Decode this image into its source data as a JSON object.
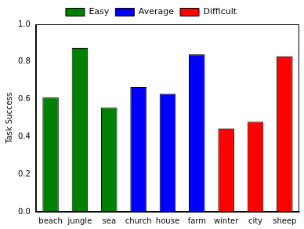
{
  "chart_data": {
    "type": "bar",
    "y_label": "Task Success",
    "categories": [
      "beach",
      "jungle",
      "sea",
      "church",
      "house",
      "farm",
      "winter",
      "city",
      "sheep"
    ],
    "series": [
      {
        "name": "Easy",
        "color": "#008000",
        "values": [
          0.61,
          0.875,
          0.555,
          null,
          null,
          null,
          null,
          null,
          null
        ]
      },
      {
        "name": "Average",
        "color": "#0000ff",
        "values": [
          null,
          null,
          null,
          0.665,
          0.63,
          0.84,
          null,
          null,
          null
        ]
      },
      {
        "name": "Difficult",
        "color": "#ff0000",
        "values": [
          null,
          null,
          null,
          null,
          null,
          null,
          0.445,
          0.48,
          0.83
        ]
      }
    ],
    "ylim": [
      0,
      1
    ],
    "yticks": [
      {
        "value": 0,
        "label": "0.0"
      },
      0.2,
      0.4,
      0.6,
      0.8,
      {
        "value": 1,
        "label": "1.0"
      }
    ],
    "grid": false,
    "legend": "top"
  }
}
